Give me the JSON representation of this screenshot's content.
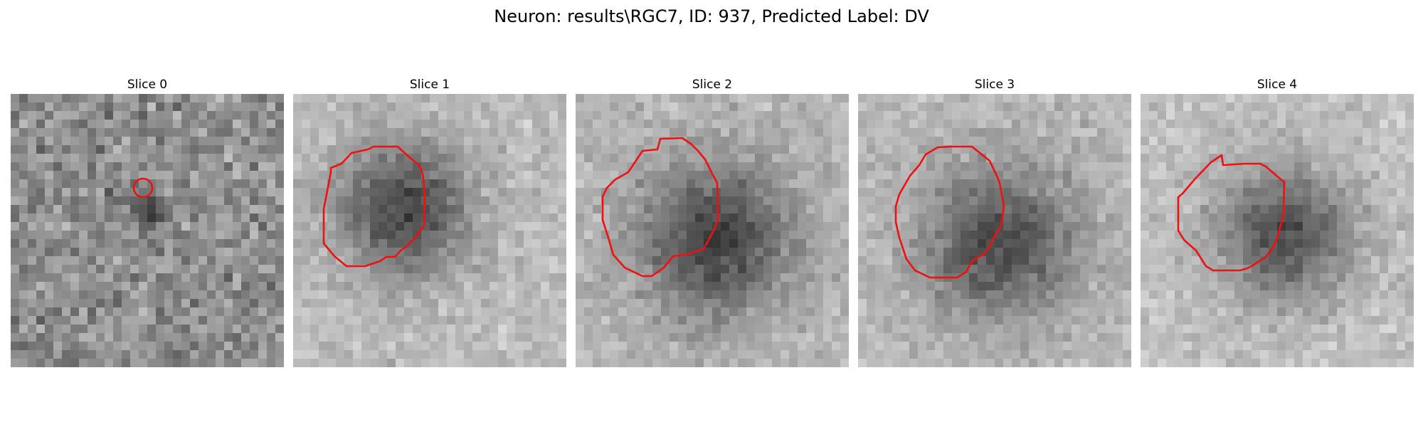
{
  "figure": {
    "title": "Neuron: results\\RGC7, ID: 937, Predicted Label: DV"
  },
  "colors": {
    "background": "#ffffff",
    "contour": "#ee1111"
  },
  "panels": [
    {
      "title": "Slice 0",
      "image": "grayscale-noise-with-small-dark-spot",
      "roi_shape": "small-circle"
    },
    {
      "title": "Slice 1",
      "image": "grayscale-dark-cell-body",
      "roi_shape": "polygon"
    },
    {
      "title": "Slice 2",
      "image": "grayscale-dark-cell-body",
      "roi_shape": "polygon"
    },
    {
      "title": "Slice 3",
      "image": "grayscale-dark-cell-body",
      "roi_shape": "polygon"
    },
    {
      "title": "Slice 4",
      "image": "grayscale-dark-cell-body",
      "roi_shape": "polygon"
    }
  ]
}
